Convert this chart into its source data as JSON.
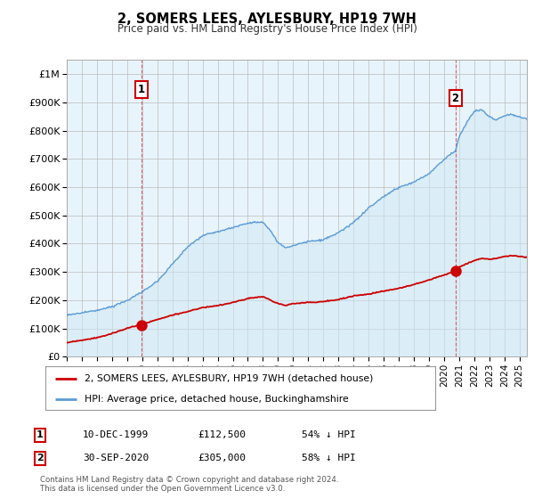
{
  "title": "2, SOMERS LEES, AYLESBURY, HP19 7WH",
  "subtitle": "Price paid vs. HM Land Registry's House Price Index (HPI)",
  "background_color": "#ffffff",
  "plot_bg_color": "#e8f4fb",
  "grid_color": "#bbbbbb",
  "ylim": [
    0,
    1050000
  ],
  "yticks": [
    0,
    100000,
    200000,
    300000,
    400000,
    500000,
    600000,
    700000,
    800000,
    900000,
    1000000
  ],
  "ytick_labels": [
    "£0",
    "£100K",
    "£200K",
    "£300K",
    "£400K",
    "£500K",
    "£600K",
    "£700K",
    "£800K",
    "£900K",
    "£1M"
  ],
  "xmin": 1995.0,
  "xmax": 2025.5,
  "hpi_color": "#5b9bd5",
  "price_color": "#cc0000",
  "sale1_x": 1999.94,
  "sale1_y": 112500,
  "sale1_label": "1",
  "sale2_x": 2020.75,
  "sale2_y": 305000,
  "sale2_label": "2",
  "legend_line1": "2, SOMERS LEES, AYLESBURY, HP19 7WH (detached house)",
  "legend_line2": "HPI: Average price, detached house, Buckinghamshire",
  "annotation1_date": "10-DEC-1999",
  "annotation1_price": "£112,500",
  "annotation1_note": "54% ↓ HPI",
  "annotation2_date": "30-SEP-2020",
  "annotation2_price": "£305,000",
  "annotation2_note": "58% ↓ HPI",
  "footer": "Contains HM Land Registry data © Crown copyright and database right 2024.\nThis data is licensed under the Open Government Licence v3.0."
}
